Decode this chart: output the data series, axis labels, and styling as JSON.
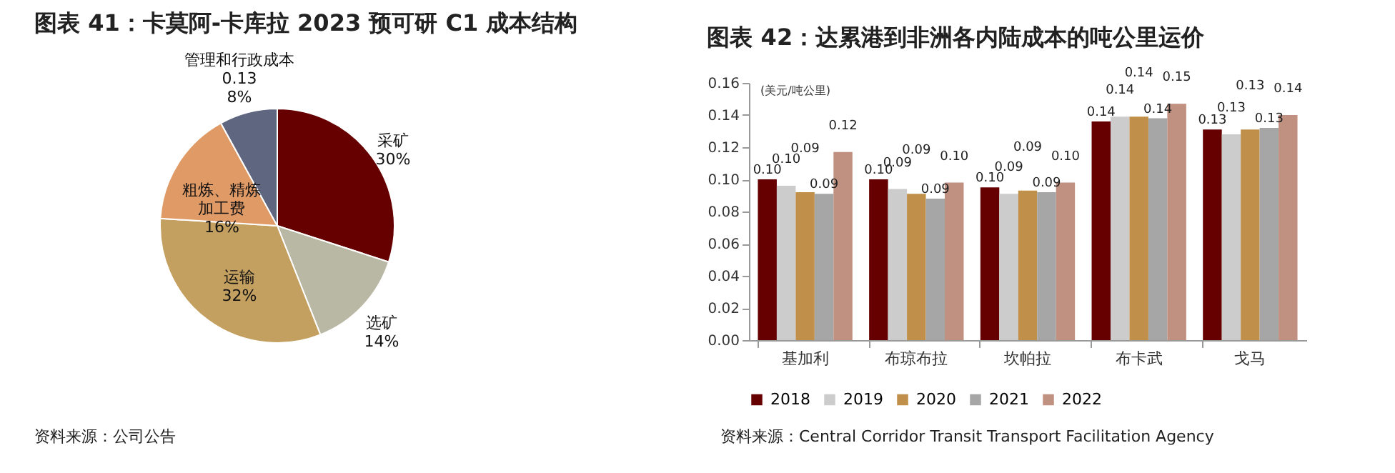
{
  "chart_data": [
    {
      "type": "pie",
      "title": "图表 41：卡莫阿-卡库拉 2023 预可研 C1 成本结构",
      "categories": [
        "采矿",
        "选矿",
        "运输",
        "粗炼、精炼加工费",
        "管理和行政成本"
      ],
      "values": [
        30,
        14,
        32,
        16,
        8
      ],
      "value_labels": [
        "30%",
        "14%",
        "32%",
        "16%",
        "0.13\n8%"
      ],
      "colors": [
        "#660000",
        "#b8b8a4",
        "#c4a060",
        "#e09a66",
        "#5f6680"
      ],
      "annotations": [
        "资料来源：公司公告"
      ]
    },
    {
      "type": "bar",
      "title": "图表 42：达累港到非洲各内陆成本的吨公里运价",
      "ylabel": "(美元/吨公里)",
      "categories": [
        "基加利",
        "布琼布拉",
        "坎帕拉",
        "布卡武",
        "戈马"
      ],
      "series": [
        {
          "name": "2018",
          "color": "#660000",
          "values": [
            0.1,
            0.1,
            0.095,
            0.136,
            0.131
          ],
          "value_labels": [
            "0.10",
            "0.10",
            "0.10",
            "0.14",
            "0.13"
          ]
        },
        {
          "name": "2019",
          "color": "#cccccc",
          "values": [
            0.096,
            0.094,
            0.091,
            0.139,
            0.128
          ],
          "value_labels": [
            "0.10",
            "0.09",
            "0.09",
            "0.14",
            "0.13"
          ]
        },
        {
          "name": "2020",
          "color": "#c0904a",
          "values": [
            0.092,
            0.091,
            0.093,
            0.139,
            0.131
          ],
          "value_labels": [
            "0.09",
            "0.09",
            "0.09",
            "0.14",
            "0.13"
          ]
        },
        {
          "name": "2021",
          "color": "#a6a6a6",
          "values": [
            0.091,
            0.088,
            0.092,
            0.138,
            0.132
          ],
          "value_labels": [
            "0.09",
            "0.09",
            "0.09",
            "0.14",
            "0.13"
          ]
        },
        {
          "name": "2022",
          "color": "#c09080",
          "values": [
            0.117,
            0.098,
            0.098,
            0.147,
            0.14
          ],
          "value_labels": [
            "0.12",
            "0.10",
            "0.10",
            "0.15",
            "0.14"
          ]
        }
      ],
      "ylim": [
        0,
        0.16
      ],
      "yticks": [
        "0.00",
        "0.02",
        "0.04",
        "0.06",
        "0.08",
        "0.10",
        "0.12",
        "0.14",
        "0.16"
      ],
      "grid": false,
      "legend": "bottom",
      "annotations": [
        "资料来源：Central Corridor Transit Transport Facilitation Agency"
      ]
    }
  ]
}
